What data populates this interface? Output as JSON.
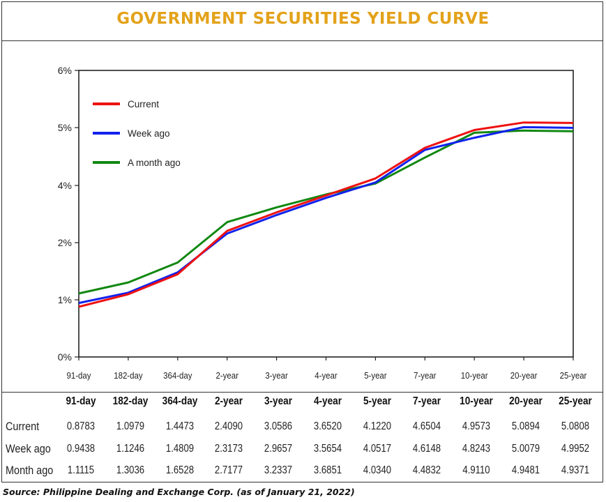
{
  "title": "GOVERNMENT SECURITIES YIELD CURVE",
  "chart_data": {
    "type": "line",
    "categories": [
      "91-day",
      "182-day",
      "364-day",
      "2-year",
      "3-year",
      "4-year",
      "5-year",
      "7-year",
      "10-year",
      "20-year",
      "25-year"
    ],
    "y_ticks": [
      "0%",
      "1%",
      "2%",
      "4%",
      "5%",
      "6%"
    ],
    "series": [
      {
        "name": "Current",
        "color": "#ee1111",
        "values": [
          0.8783,
          1.0979,
          1.4473,
          2.409,
          3.0586,
          3.652,
          4.122,
          4.6504,
          4.9573,
          5.0894,
          5.0808
        ]
      },
      {
        "name": "Week ago",
        "color": "#1122ee",
        "values": [
          0.9438,
          1.1246,
          1.4809,
          2.3173,
          2.9657,
          3.5654,
          4.0517,
          4.6148,
          4.8243,
          5.0079,
          4.9952
        ]
      },
      {
        "name": "A month ago",
        "color": "#118811",
        "values": [
          1.1115,
          1.3036,
          1.6528,
          2.7177,
          3.2337,
          3.6851,
          4.034,
          4.4832,
          4.911,
          4.9481,
          4.9371
        ]
      }
    ],
    "legend_position": "top-left"
  },
  "table": {
    "headers": [
      "91-day",
      "182-day",
      "364-day",
      "2-year",
      "3-year",
      "4-year",
      "5-year",
      "7-year",
      "10-year",
      "20-year",
      "25-year"
    ],
    "rows": [
      {
        "label": "Current",
        "values": [
          "0.8783",
          "1.0979",
          "1.4473",
          "2.4090",
          "3.0586",
          "3.6520",
          "4.1220",
          "4.6504",
          "4.9573",
          "5.0894",
          "5.0808"
        ]
      },
      {
        "label": "Week ago",
        "values": [
          "0.9438",
          "1.1246",
          "1.4809",
          "2.3173",
          "2.9657",
          "3.5654",
          "4.0517",
          "4.6148",
          "4.8243",
          "5.0079",
          "4.9952"
        ]
      },
      {
        "label": "Month ago",
        "values": [
          "1.1115",
          "1.3036",
          "1.6528",
          "2.7177",
          "3.2337",
          "3.6851",
          "4.0340",
          "4.4832",
          "4.9110",
          "4.9481",
          "4.9371"
        ]
      }
    ]
  },
  "source": "Source: Philippine Dealing and Exchange Corp. (as of January 21, 2022)"
}
